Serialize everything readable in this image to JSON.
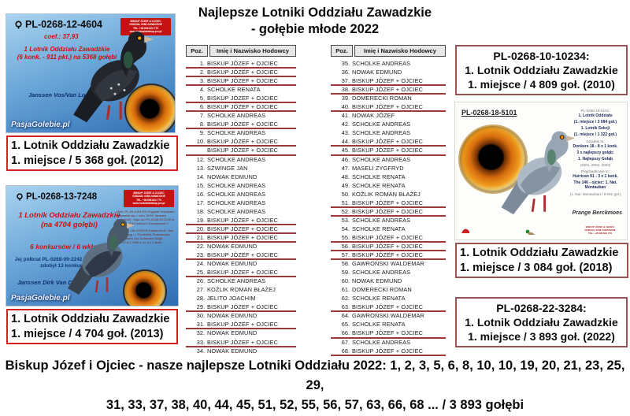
{
  "title": {
    "line1": "Najlepsze Lotniki Oddziału Zawadzkie",
    "line2": "- gołębie młode 2022"
  },
  "colors": {
    "caption_red": "#d42222",
    "award_maroon": "#9c5252",
    "table_underline": "#9c3a3a",
    "card_sky_blue": "#6aa6d8",
    "contact_red": "#c41111"
  },
  "cards": {
    "card1": {
      "ring": "PL-0268-12-4604",
      "coef": "coef.: 37,93",
      "ach_line1": "1 Lotnik Oddziału Zawadzkie",
      "ach_line2": "(6 konk. - 911 pkt.) na 5368 gołębi",
      "strain": "Janssen Vos/Van Loon",
      "watermark": "PasjaGolebie.pl",
      "contact_lines": [
        {
          "t": "BISKUP JÓZEF & OJCIEC",
          "cls": "contact-line"
        },
        {
          "t": "ODDZIAŁ 0268 ZAWADZKIE",
          "cls": "contact-line"
        },
        {
          "t": "TEL. +48 696 824 779",
          "cls": "contact-line"
        },
        {
          "t": "www.hodowlabiskup.prv.pl",
          "cls": "contact-line"
        }
      ],
      "caption_line1": "1. Lotnik Oddziału Zawadzkie",
      "caption_line2": "1. miejsce / 5 368 goł. (2012)"
    },
    "card2": {
      "ring": "PL-0268-13-7248",
      "ach_line1": "1 Lotnik Oddziału Zawadzkie",
      "ach_line2": "(na 4704 gołębi)",
      "ach_line3": "6 konkursów / 6 wkładań",
      "note": "Jej półbrat PL-0268-09-2242 w sezonie 2012 zdobył 13 konkursów !",
      "strain": "Janssen Dirk Van Dyck",
      "watermark": "PasjaGolebie.pl",
      "contact_lines": [
        {
          "t": "BISKUP JÓZEF & OJCIEC",
          "cls": "contact-line"
        },
        {
          "t": "ODDZIAŁ 0268 ZAWADZKIE",
          "cls": "contact-line"
        },
        {
          "t": "TEL. +48 696 824 779",
          "cls": "contact-line"
        },
        {
          "t": "www.hodowlabiskup.prv.pl",
          "cls": "contact-line"
        }
      ],
      "description_lines": [
        {
          "t": "Opis: PL-04-1004729 Oryginał Verhaeren (Wywodzi się z rodu 100% Janssen Arendonk). Jego syn PL-0268-09-2242 w sezonie 2012 zdobył 13 konkursów !!",
          "cls": "tiny-para"
        },
        {
          "t": "Matka NL-08-1978292 Kampioen D. Van Dyck (Oryg. J. Poortvliet) Prawnuczka Kannibaal'a i As Duivinnen Belgii (K.B.D.B.) 1996 m.in. 4 x 1 konk.",
          "cls": "tiny-para"
        }
      ],
      "caption_line1": "1. Lotnik Oddziału Zawadzkie",
      "caption_line2": "1. miejsce / 4 704 goł. (2013)"
    },
    "card3": {
      "ring": "PL-0268-18-5101",
      "pedigree_lines": [
        {
          "t": "PL-0268-18-5101:",
          "cls": "ped-gray"
        },
        {
          "t": "1. Lotnik Oddziału",
          "cls": "ped-bold"
        },
        {
          "t": "(1. miejsce / 3 084 goł.)",
          "cls": "ped-bold"
        },
        {
          "t": "1. Lotnik Sekcji",
          "cls": "ped-bold"
        },
        {
          "t": "(1. miejsce / 1 322 goł.)",
          "cls": "ped-bold"
        },
        {
          "t": "Dziadek to:",
          "cls": "ped-gray"
        },
        {
          "t": "Donkere 18 - 8 x 1 konk.",
          "cls": "ped-bold"
        },
        {
          "t": "3 x najlepszy gołąb:",
          "cls": "ped-bold"
        },
        {
          "t": "1. Najlepszy Gołąb",
          "cls": "ped-bold"
        },
        {
          "t": "(2001, 2002, 2003)",
          "cls": "ped-gray"
        },
        {
          "t": "Pradziadkowie to:",
          "cls": "ped-gray"
        },
        {
          "t": "Hurrican 91 - 3 x 1 konk.",
          "cls": "ped-bold"
        },
        {
          "t": "The 146 - ojciec: 1. Nat. Montauban",
          "cls": "ped-bold"
        },
        {
          "t": "(1. Nat. Montauban / 9 091 goł.)",
          "cls": "ped-gray"
        }
      ],
      "strain": "Prange Berckmoes",
      "contact_lines": [
        {
          "t": "BISKUP JÓZEF & OJCIEC",
          "cls": "contact-line"
        },
        {
          "t": "ODDZIAŁ 0268 ZAWADZKIE",
          "cls": "contact-line"
        },
        {
          "t": "TEL. +48 696 824 779",
          "cls": "contact-line"
        }
      ],
      "caption_line1": "1. Lotnik Oddziału Zawadzkie",
      "caption_line2": "1. miejsce / 3 084 goł. (2018)"
    }
  },
  "awards": {
    "box_2010": {
      "line1": "PL-0268-10-10234:",
      "line2": "1. Lotnik Oddziału Zawadzkie",
      "line3": "1. miejsce / 4 809 goł. (2010)"
    },
    "box_2022": {
      "line1": "PL-0268-22-3284:",
      "line2": "1. Lotnik Oddziału Zawadzkie",
      "line3": "1. miejsce / 3 893 goł. (2022)"
    }
  },
  "tables": {
    "headers": {
      "pos": "Poz.",
      "name": "Imię i Nazwisko Hodowcy"
    },
    "left_rows": [
      {
        "pos": "1.",
        "name": "BISKUP JÓZEF + OJCIEC",
        "hl": true
      },
      {
        "pos": "2.",
        "name": "BISKUP JÓZEF + OJCIEC",
        "hl": true
      },
      {
        "pos": "3.",
        "name": "BISKUP JÓZEF + OJCIEC",
        "hl": true
      },
      {
        "pos": "4.",
        "name": "SCHOLKE RENATA",
        "hl": false
      },
      {
        "pos": "5.",
        "name": "BISKUP JÓZEF + OJCIEC",
        "hl": true
      },
      {
        "pos": "6.",
        "name": "BISKUP JÓZEF + OJCIEC",
        "hl": true
      },
      {
        "pos": "7.",
        "name": "SCHOLKE ANDREAS",
        "hl": false
      },
      {
        "pos": "8.",
        "name": "BISKUP JÓZEF + OJCIEC",
        "hl": true
      },
      {
        "pos": "9.",
        "name": "SCHOLKE ANDREAS",
        "hl": false
      },
      {
        "pos": "10.",
        "name": "BISKUP JÓZEF + OJCIEC",
        "hl": true
      },
      {
        "pos": "",
        "name": "BISKUP JÓZEF + OJCIEC",
        "hl": true
      },
      {
        "pos": "12.",
        "name": "SCHOLKE ANDREAS",
        "hl": false
      },
      {
        "pos": "13.",
        "name": "SZWINGE JAN",
        "hl": false
      },
      {
        "pos": "14.",
        "name": "NOWAK EDMUND",
        "hl": false
      },
      {
        "pos": "15.",
        "name": "SCHOLKE ANDREAS",
        "hl": false
      },
      {
        "pos": "16.",
        "name": "SCHOLKE ANDREAS",
        "hl": false
      },
      {
        "pos": "17.",
        "name": "SCHOLKE ANDREAS",
        "hl": false
      },
      {
        "pos": "18.",
        "name": "SCHOLKE ANDREAS",
        "hl": false
      },
      {
        "pos": "19.",
        "name": "BISKUP JÓZEF + OJCIEC",
        "hl": true
      },
      {
        "pos": "20.",
        "name": "BISKUP JÓZEF + OJCIEC",
        "hl": true
      },
      {
        "pos": "21.",
        "name": "BISKUP JÓZEF + OJCIEC",
        "hl": true
      },
      {
        "pos": "22.",
        "name": "NOWAK EDMUND",
        "hl": false
      },
      {
        "pos": "23.",
        "name": "BISKUP JÓZEF + OJCIEC",
        "hl": true
      },
      {
        "pos": "24.",
        "name": "NOWAK EDMUND",
        "hl": false
      },
      {
        "pos": "25.",
        "name": "BISKUP JÓZEF + OJCIEC",
        "hl": true
      },
      {
        "pos": "26.",
        "name": "SCHOLKE ANDREAS",
        "hl": false
      },
      {
        "pos": "27.",
        "name": "KOŹLIK ROMAN BŁAŻEJ",
        "hl": false
      },
      {
        "pos": "28.",
        "name": "JELITO JOACHIM",
        "hl": false
      },
      {
        "pos": "29.",
        "name": "BISKUP JÓZEF + OJCIEC",
        "hl": true
      },
      {
        "pos": "30.",
        "name": "NOWAK EDMUND",
        "hl": false
      },
      {
        "pos": "31.",
        "name": "BISKUP JÓZEF + OJCIEC",
        "hl": true
      },
      {
        "pos": "32.",
        "name": "NOWAK EDMUND",
        "hl": false
      },
      {
        "pos": "33.",
        "name": "BISKUP JÓZEF + OJCIEC",
        "hl": true
      },
      {
        "pos": "34.",
        "name": "NOWAK EDMUND",
        "hl": false
      }
    ],
    "right_rows": [
      {
        "pos": "35.",
        "name": "SCHOLKE ANDREAS",
        "hl": false
      },
      {
        "pos": "36.",
        "name": "NOWAK EDMUND",
        "hl": false
      },
      {
        "pos": "37.",
        "name": "BISKUP JÓZEF + OJCIEC",
        "hl": true
      },
      {
        "pos": "38.",
        "name": "BISKUP JÓZEF + OJCIEC",
        "hl": true
      },
      {
        "pos": "39.",
        "name": "DOMERECKI ROMAN",
        "hl": false
      },
      {
        "pos": "40.",
        "name": "BISKUP JÓZEF + OJCIEC",
        "hl": true
      },
      {
        "pos": "41.",
        "name": "NOWAK JÓZEF",
        "hl": false
      },
      {
        "pos": "42.",
        "name": "SCHOLKE ANDREAS",
        "hl": false
      },
      {
        "pos": "43.",
        "name": "SCHOLKE ANDREAS",
        "hl": false
      },
      {
        "pos": "44.",
        "name": "BISKUP JÓZEF + OJCIEC",
        "hl": true
      },
      {
        "pos": "45.",
        "name": "BISKUP JÓZEF + OJCIEC",
        "hl": true
      },
      {
        "pos": "46.",
        "name": "SCHOLKE ANDREAS",
        "hl": false
      },
      {
        "pos": "47.",
        "name": "MASELI ZYGFRYD",
        "hl": false
      },
      {
        "pos": "48.",
        "name": "SCHOLKE RENATA",
        "hl": false
      },
      {
        "pos": "49.",
        "name": "SCHOLKE RENATA",
        "hl": false
      },
      {
        "pos": "50.",
        "name": "KOŹLIK ROMAN BŁAŻEJ",
        "hl": false
      },
      {
        "pos": "51.",
        "name": "BISKUP JÓZEF + OJCIEC",
        "hl": true
      },
      {
        "pos": "52.",
        "name": "BISKUP JÓZEF + OJCIEC",
        "hl": true
      },
      {
        "pos": "53.",
        "name": "SCHOLKE ANDREAS",
        "hl": false
      },
      {
        "pos": "54.",
        "name": "SCHOLKE RENATA",
        "hl": false
      },
      {
        "pos": "55.",
        "name": "BISKUP JÓZEF + OJCIEC",
        "hl": true
      },
      {
        "pos": "56.",
        "name": "BISKUP JÓZEF + OJCIEC",
        "hl": true
      },
      {
        "pos": "57.",
        "name": "BISKUP JÓZEF + OJCIEC",
        "hl": true
      },
      {
        "pos": "58.",
        "name": "GAWROŃSKI WALDEMAR",
        "hl": false
      },
      {
        "pos": "59.",
        "name": "SCHOLKE ANDREAS",
        "hl": false
      },
      {
        "pos": "60.",
        "name": "NOWAK EDMUND",
        "hl": false
      },
      {
        "pos": "61.",
        "name": "DOMERECKI ROMAN",
        "hl": false
      },
      {
        "pos": "62.",
        "name": "SCHOLKE RENATA",
        "hl": false
      },
      {
        "pos": "63.",
        "name": "BISKUP JÓZEF + OJCIEC",
        "hl": true
      },
      {
        "pos": "64.",
        "name": "GAWROŃSKI WALDEMAR",
        "hl": false
      },
      {
        "pos": "65.",
        "name": "SCHOLKE RENATA",
        "hl": false
      },
      {
        "pos": "66.",
        "name": "BISKUP JÓZEF + OJCIEC",
        "hl": true
      },
      {
        "pos": "67.",
        "name": "SCHOLKE ANDREAS",
        "hl": false
      },
      {
        "pos": "68.",
        "name": "BISKUP JÓZEF + OJCIEC",
        "hl": true
      }
    ]
  },
  "footer": {
    "line1": "Biskup Józef i Ojciec - nasze najlepsze Lotniki Oddziału 2022: 1, 2, 3, 5, 6, 8, 10, 10, 19, 20, 21, 23, 25, 29,",
    "line2": "31, 33, 37, 38, 40, 44, 45, 51, 52, 55, 56, 57, 63, 66, 68  ... / 3 893 gołębi"
  }
}
